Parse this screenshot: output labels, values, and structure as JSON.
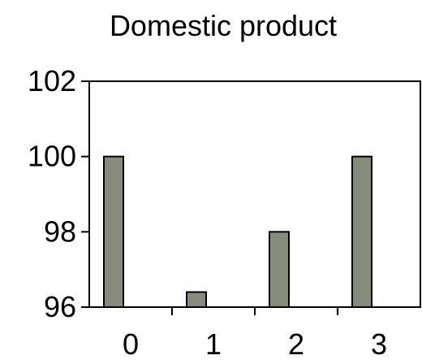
{
  "chart_data": {
    "type": "bar",
    "title": "Domestic product",
    "xlabel": "",
    "ylabel": "",
    "categories": [
      "0",
      "1",
      "2",
      "3"
    ],
    "values": [
      100,
      96.4,
      98,
      100
    ],
    "ylim": [
      96,
      102
    ],
    "yticks": [
      "96",
      "98",
      "100",
      "102"
    ],
    "grid": false,
    "legend": "none",
    "colors": {
      "bar_fill": "#868c7c",
      "bar_stroke": "#000000",
      "axis": "#000000",
      "text": "#000000"
    }
  }
}
